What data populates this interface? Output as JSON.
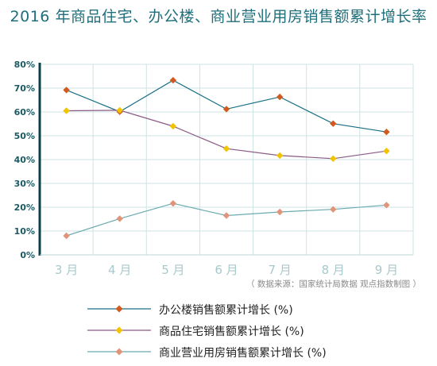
{
  "chart_data": {
    "type": "line",
    "title": "2016 年商品住宅、办公楼、商业营业用房销售额累计增长率",
    "source": "（ 数据来源：国家统计局数据 观点指数制图 ）",
    "categories": [
      "3 月",
      "4 月",
      "5 月",
      "6 月",
      "7 月",
      "8 月",
      "9 月"
    ],
    "y_tick_labels": [
      "0%",
      "10%",
      "20%",
      "30%",
      "40%",
      "50%",
      "60%",
      "70%",
      "80%"
    ],
    "ylim": [
      0,
      80
    ],
    "grid": true,
    "legend_position": "bottom",
    "series": [
      {
        "name": "办公楼销售额累计增长 (%)",
        "color": "#1a6f86",
        "marker_color": "#d35a1f",
        "values": [
          69.2,
          60.1,
          73.3,
          61.2,
          66.3,
          55.1,
          51.6
        ]
      },
      {
        "name": "商品住宅销售额累计增长 (%)",
        "color": "#8a5a86",
        "marker_color": "#f2c300",
        "values": [
          60.5,
          60.7,
          54.0,
          44.6,
          41.7,
          40.4,
          43.6
        ]
      },
      {
        "name": "商业营业用房销售额累计增长 (%)",
        "color": "#6aaab0",
        "marker_color": "#e0957a",
        "values": [
          8.0,
          15.2,
          21.6,
          16.5,
          18.0,
          19.1,
          20.9
        ]
      }
    ]
  }
}
